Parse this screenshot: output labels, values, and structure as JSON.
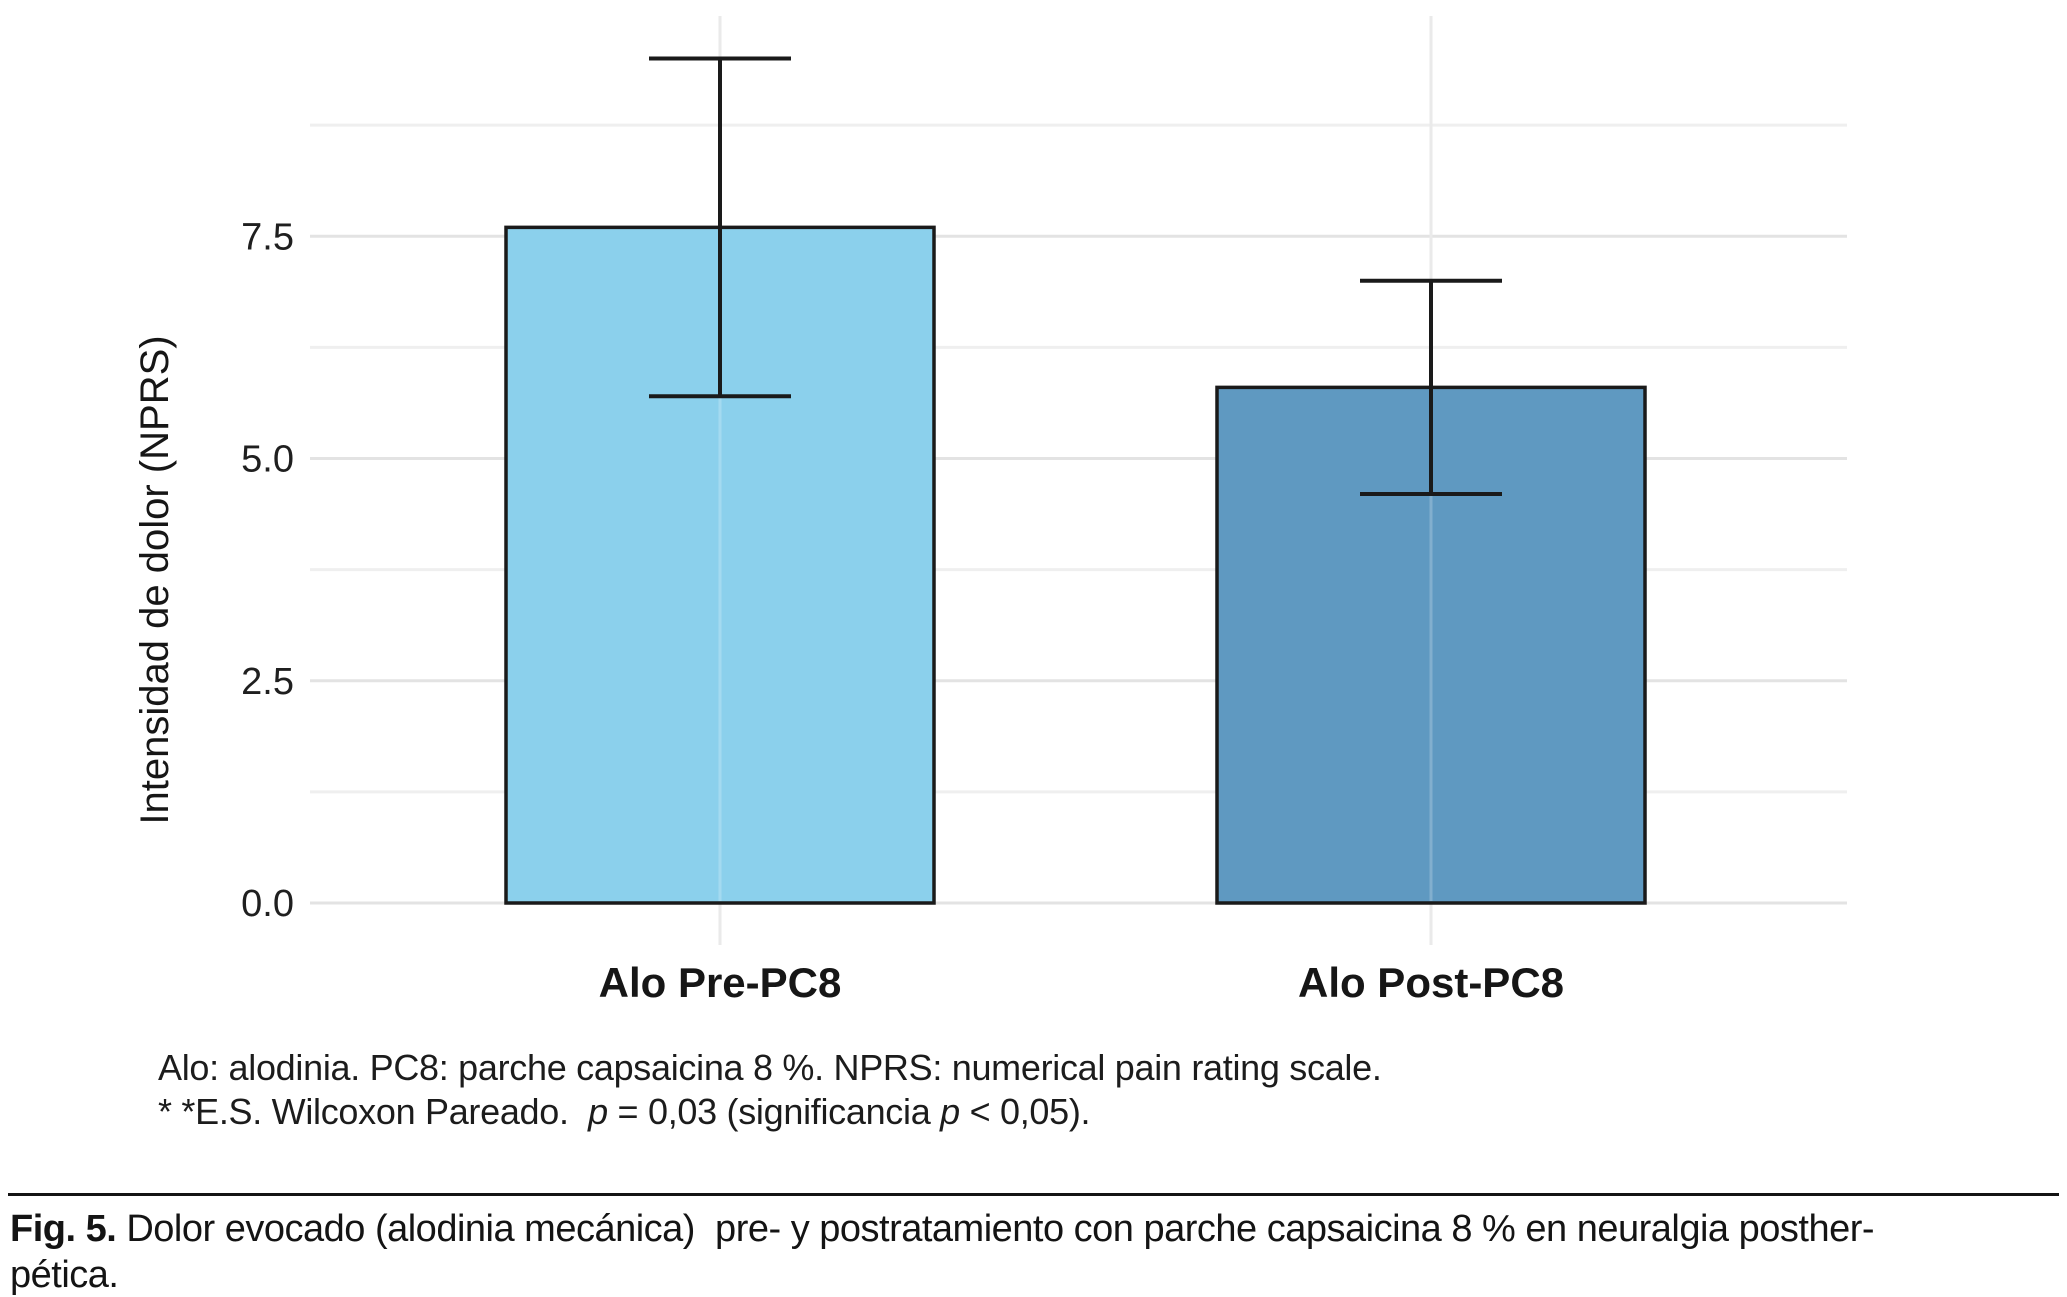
{
  "chart_data": {
    "type": "bar",
    "title": "",
    "categories": [
      "Alo Pre-PC8",
      "Alo Post-PC8"
    ],
    "values": [
      7.6,
      5.8
    ],
    "error_low": [
      5.7,
      4.6
    ],
    "error_high": [
      9.5,
      7.0
    ],
    "xlabel": "",
    "ylabel": "Intensidad de dolor (NPRS)",
    "ylim": [
      0,
      10
    ],
    "yticks": [
      0.0,
      2.5,
      5.0,
      7.5
    ],
    "ytick_labels": [
      "0.0",
      "2.5",
      "5.0",
      "7.5"
    ],
    "minor_ticks": [
      1.25,
      3.75,
      6.25,
      8.75
    ],
    "grid": true,
    "legend": "none",
    "bar_colors": [
      "#8BD0EC",
      "#5F99C1"
    ],
    "bar_edge_color": "#1a1a1a",
    "gridline_major_color": "#e3e3e3",
    "gridline_minor_color": "#efefef",
    "gridline_vertical_color": "#eaeaea"
  },
  "footnote": {
    "line1": "Alo: alodinia. PC8: parche capsaicina 8 %. NPRS: numerical pain rating scale.",
    "line2_prefix": "* *E.S. Wilcoxon Pareado.  ",
    "line2_p1": "p",
    "line2_seg2": " = 0,03 (significancia ",
    "line2_p2": "p",
    "line2_seg3": " < 0,05)."
  },
  "caption": {
    "label": "Fig. 5.",
    "line1": "Dolor evocado (alodinia mecánica)  pre- y postratamiento con parche capsaicina 8 % en neuralgia posther-",
    "line2": "pética."
  }
}
